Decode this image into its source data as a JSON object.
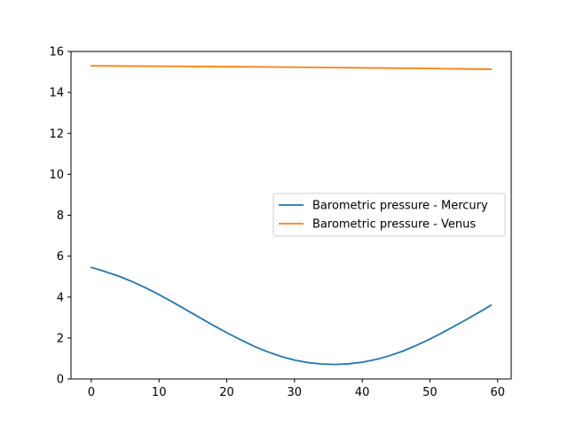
{
  "chart_data": {
    "type": "line",
    "title": "",
    "xlabel": "",
    "ylabel": "",
    "xlim": [
      -3,
      62
    ],
    "ylim": [
      0,
      16
    ],
    "xticks": [
      0,
      10,
      20,
      30,
      40,
      50,
      60
    ],
    "yticks": [
      0,
      2,
      4,
      6,
      8,
      10,
      12,
      14,
      16
    ],
    "grid": false,
    "legend_position": "center-right",
    "series": [
      {
        "name": "Barometric pressure - Mercury",
        "color": "#1f77b4",
        "x": [
          0,
          2,
          4,
          6,
          8,
          10,
          12,
          14,
          16,
          18,
          20,
          22,
          24,
          26,
          28,
          30,
          32,
          34,
          36,
          38,
          40,
          42,
          44,
          46,
          48,
          50,
          52,
          54,
          56,
          58,
          59
        ],
        "y": [
          5.45,
          5.25,
          5.03,
          4.76,
          4.46,
          4.12,
          3.76,
          3.38,
          3.0,
          2.62,
          2.26,
          1.92,
          1.6,
          1.33,
          1.1,
          0.92,
          0.8,
          0.73,
          0.71,
          0.74,
          0.82,
          0.95,
          1.13,
          1.36,
          1.64,
          1.95,
          2.29,
          2.65,
          3.02,
          3.4,
          3.6
        ]
      },
      {
        "name": "Barometric pressure - Venus",
        "color": "#ff7f0e",
        "x": [
          0,
          10,
          20,
          30,
          40,
          50,
          59
        ],
        "y": [
          15.3,
          15.28,
          15.26,
          15.23,
          15.2,
          15.17,
          15.13
        ]
      }
    ]
  }
}
